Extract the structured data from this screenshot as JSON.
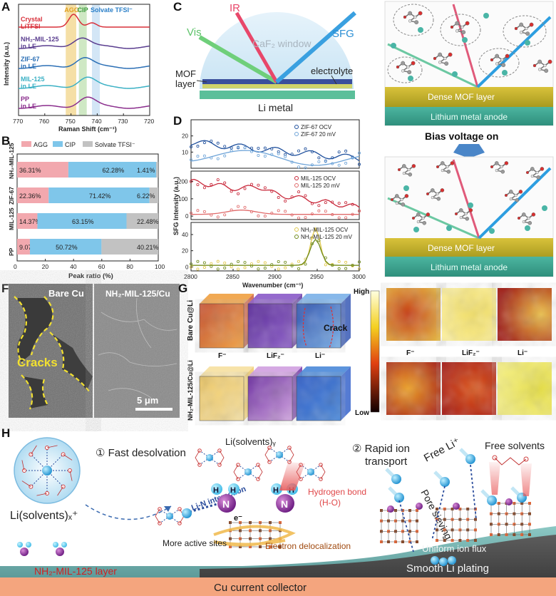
{
  "panels": {
    "A": {
      "label": "A",
      "chart_data": {
        "type": "line",
        "xlabel": "Raman Shift (cm⁻¹)",
        "ylabel": "Intensity (a.u.)",
        "xlim": [
          770,
          720
        ],
        "xticks": [
          "770",
          "760",
          "750",
          "740",
          "730",
          "720"
        ],
        "bands": [
          {
            "name": "AGG",
            "range": [
              752,
              748
            ],
            "color": "#f5dfa6"
          },
          {
            "name": "CIP",
            "range": [
              747,
              744
            ],
            "color": "#cfe8c4"
          },
          {
            "name": "Solvate TFSI⁻",
            "range": [
              742,
              739
            ],
            "color": "#d3e6f6"
          }
        ],
        "series": [
          {
            "name": "Crystal\nLiTFSI",
            "color": "#d8303a",
            "peak": 749
          },
          {
            "name": "NH₂-MIL-125\nin LE",
            "color": "#5a3d8f",
            "peak": 746
          },
          {
            "name": "ZIF-67\nin LE",
            "color": "#2b6fb5",
            "peak": 745
          },
          {
            "name": "MIL-125\nin LE",
            "color": "#3ab0c4",
            "peak": 744
          },
          {
            "name": "PP\nin LE",
            "color": "#8a2d8c",
            "peak": 744
          }
        ]
      }
    },
    "B": {
      "label": "B",
      "chart_data": {
        "type": "bar",
        "stacked": true,
        "orientation": "horizontal",
        "categories": [
          "NH₂-MIL-125",
          "ZIF-67",
          "MIL-125",
          "PP"
        ],
        "series": [
          {
            "name": "AGG",
            "color": "#f2a8ae",
            "values": [
              36.31,
              22.36,
              14.37,
              9.07
            ]
          },
          {
            "name": "CIP",
            "color": "#7fc6ea",
            "values": [
              62.28,
              71.42,
              63.15,
              50.72
            ]
          },
          {
            "name": "Solvate TFSI⁻",
            "color": "#c2c2c2",
            "values": [
              1.41,
              6.22,
              22.48,
              40.21
            ]
          }
        ],
        "value_labels": [
          [
            "36.31%",
            "62.28%",
            "1.41%"
          ],
          [
            "22.36%",
            "71.42%",
            "6.22%"
          ],
          [
            "14.37%",
            "63.15%",
            "22.48%"
          ],
          [
            "9.07%",
            "50.72%",
            "40.21%"
          ]
        ],
        "xlabel": "Peak ratio (%)",
        "xlim": [
          0,
          100
        ],
        "xticks": [
          "0",
          "20",
          "40",
          "60",
          "80",
          "100"
        ],
        "legend_placement": "top"
      }
    },
    "C": {
      "label": "C",
      "ir": "IR",
      "vis": "Vis",
      "sfg": "SFG",
      "window": "CaF₂ window",
      "mof": "MOF\nlayer",
      "electrolyte": "electrolyte",
      "li_metal": "Li metal"
    },
    "D": {
      "label": "D",
      "chart_data": {
        "type": "scatter",
        "xlabel": "Wavenumber (cm⁻¹)",
        "ylabel": "SFG Intensity (a.u.)",
        "xlim": [
          2800,
          3000
        ],
        "xticks": [
          "2800",
          "2850",
          "2900",
          "2950",
          "3000"
        ],
        "subplots": [
          {
            "legend": [
              "ZIF-67 OCV",
              "ZIF-67 20 mV"
            ],
            "colors": [
              "#1e4f9c",
              "#6ea4d8"
            ],
            "yticks": [
              "10",
              "20"
            ],
            "ylim": [
              0,
              30
            ]
          },
          {
            "legend": [
              "MIL-125 OCV",
              "MIL-125 20 mV"
            ],
            "colors": [
              "#c8283a",
              "#e06a6a"
            ],
            "yticks": [
              "0",
              "100",
              "200"
            ],
            "ylim": [
              -20,
              260
            ]
          },
          {
            "legend": [
              "NH₂-MIL-125 OCV",
              "NH₂-MIL-125 20 mV"
            ],
            "colors": [
              "#e0c84a",
              "#6f8a1c"
            ],
            "yticks": [
              "0",
              "20",
              "40"
            ],
            "ylim": [
              -5,
              55
            ]
          }
        ]
      }
    },
    "E": {
      "label": "E",
      "mof_layer": "Dense MOF layer",
      "anode": "Lithium metal anode",
      "bias": "Bias voltage on"
    },
    "F": {
      "label": "F",
      "bare_cu": "Bare Cu",
      "nh2_cu": "NH₂-MIL-125/Cu",
      "cracks": "Cracks",
      "scale": "5 μm"
    },
    "G": {
      "label": "G",
      "row1": "Bare Cu@Li",
      "row2": "NH₂-MIL-125/Cu@Li",
      "crack": "Crack",
      "cube_labels": [
        "F⁻",
        "LiF₂⁻",
        "Li⁻"
      ],
      "map_labels": [
        "F⁻",
        "LiF₂⁻",
        "Li⁻"
      ],
      "high": "High",
      "low": "Low"
    },
    "H": {
      "label": "H",
      "li_solvents_x": "Li(solvents)ₓ⁺",
      "li_solvents_y": "Li(solvents)ᵧ",
      "step1": "①  Fast desolvation",
      "step2_a": "② Rapid ion",
      "step2_b": "transport",
      "free_li": "Free Li⁺",
      "pore_sieving": "Pore sieving",
      "free_solvents": "Free solvents",
      "lin": "Li-N interaction",
      "hbond_a": "Hydrogen bond",
      "hbond_b": "(H-O)",
      "active": "More active sites",
      "electron": "Electron delocalization",
      "uniform": "Uniform ion flux",
      "smooth": "Smooth Li plating",
      "layer": "NH₂-MIL-125 layer",
      "collector": "Cu current collector",
      "atom_n": "N",
      "atom_h": "H",
      "electron_symbol": "e⁻"
    }
  }
}
